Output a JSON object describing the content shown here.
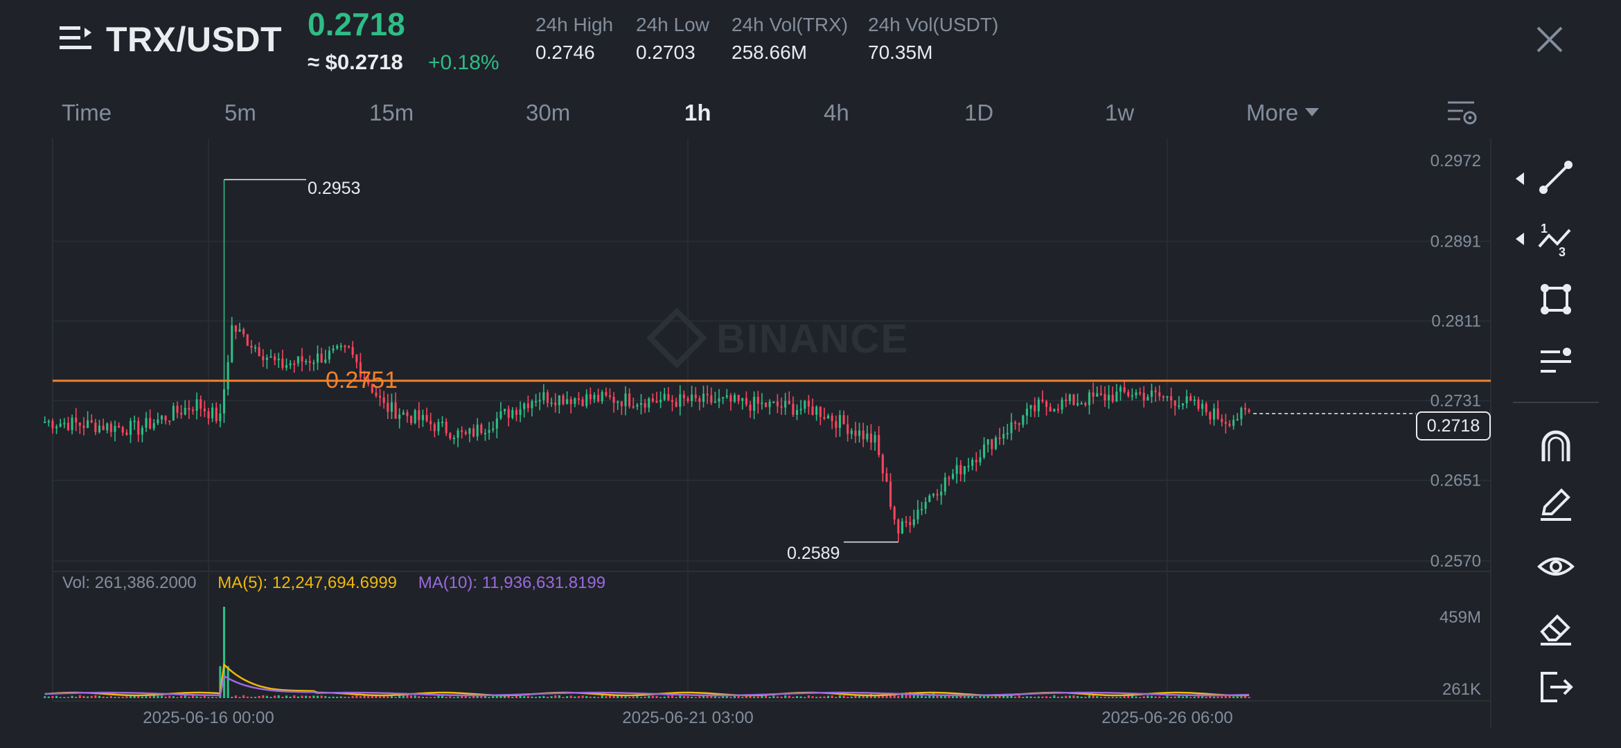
{
  "header": {
    "pair": "TRX/USDT",
    "price": "0.2718",
    "usd_price": "≈ $0.2718",
    "change": "+0.18%",
    "stats": [
      {
        "label": "24h High",
        "value": "0.2746"
      },
      {
        "label": "24h Low",
        "value": "0.2703"
      },
      {
        "label": "24h Vol(TRX)",
        "value": "258.66M"
      },
      {
        "label": "24h Vol(USDT)",
        "value": "70.35M"
      }
    ]
  },
  "timeframes": [
    "Time",
    "5m",
    "15m",
    "30m",
    "1h",
    "4h",
    "1D",
    "1w",
    "More"
  ],
  "active_timeframe": "1h",
  "watermark": "BINANCE",
  "price_axis": [
    "0.2972",
    "0.2891",
    "0.2811",
    "0.2731",
    "0.2651",
    "0.2570"
  ],
  "last_price": "0.2718",
  "ma_line_price": "0.2751",
  "high_label": "0.2953",
  "low_label": "0.2589",
  "volume": {
    "vol": "Vol: 261,386.2000",
    "ma5": "MA(5): 12,247,694.6999",
    "ma10": "MA(10): 11,936,631.8199",
    "axis": [
      "459M",
      "261K"
    ]
  },
  "time_axis": [
    "2025-06-16 00:00",
    "2025-06-21 03:00",
    "2025-06-26 06:00"
  ],
  "colors": {
    "up": "#2ebd85",
    "down": "#f6465d",
    "ma_line": "#f0822a",
    "ma5": "#f0b90b",
    "ma10": "#9c6ade",
    "grid": "#2b2f36",
    "text_muted": "#848e9c"
  },
  "icons": [
    "menu-icon",
    "close-icon",
    "chart-settings-icon",
    "trend-line-icon",
    "fibonacci-icon",
    "shape-icon",
    "text-lines-icon",
    "magnet-icon",
    "pencil-icon",
    "eye-icon",
    "eraser-icon",
    "exit-icon"
  ],
  "chart_data": {
    "type": "candlestick",
    "interval": "1h",
    "price_range": [
      0.257,
      0.2972
    ],
    "max_price": 0.2953,
    "min_price": 0.2589,
    "last_price": 0.2718,
    "horizontal_line": 0.2751,
    "close_path": [
      {
        "t": "2025-06-14 06:00",
        "p": 0.271
      },
      {
        "t": "2025-06-15 06:00",
        "p": 0.2703
      },
      {
        "t": "2025-06-15 21:00",
        "p": 0.2728
      },
      {
        "t": "2025-06-16 03:00",
        "p": 0.2712
      },
      {
        "t": "2025-06-16 06:00",
        "p": 0.2805
      },
      {
        "t": "2025-06-16 18:00",
        "p": 0.2766
      },
      {
        "t": "2025-06-17 12:00",
        "p": 0.2781
      },
      {
        "t": "2025-06-17 21:00",
        "p": 0.2725
      },
      {
        "t": "2025-06-18 18:00",
        "p": 0.2695
      },
      {
        "t": "2025-06-19 12:00",
        "p": 0.2735
      },
      {
        "t": "2025-06-20 12:00",
        "p": 0.2732
      },
      {
        "t": "2025-06-21 12:00",
        "p": 0.273
      },
      {
        "t": "2025-06-22 12:00",
        "p": 0.2722
      },
      {
        "t": "2025-06-23 03:00",
        "p": 0.269
      },
      {
        "t": "2025-06-23 09:00",
        "p": 0.2599
      },
      {
        "t": "2025-06-23 18:00",
        "p": 0.264
      },
      {
        "t": "2025-06-24 12:00",
        "p": 0.27
      },
      {
        "t": "2025-06-24 21:00",
        "p": 0.2725
      },
      {
        "t": "2025-06-25 21:00",
        "p": 0.2739
      },
      {
        "t": "2025-06-26 09:00",
        "p": 0.2732
      },
      {
        "t": "2025-06-26 21:00",
        "p": 0.2712
      },
      {
        "t": "2025-06-27 03:00",
        "p": 0.2718
      }
    ],
    "volume_peak": 459000000,
    "volume_last": 261386.2,
    "ma5": 12247694.6999,
    "ma10": 11936631.8199
  }
}
